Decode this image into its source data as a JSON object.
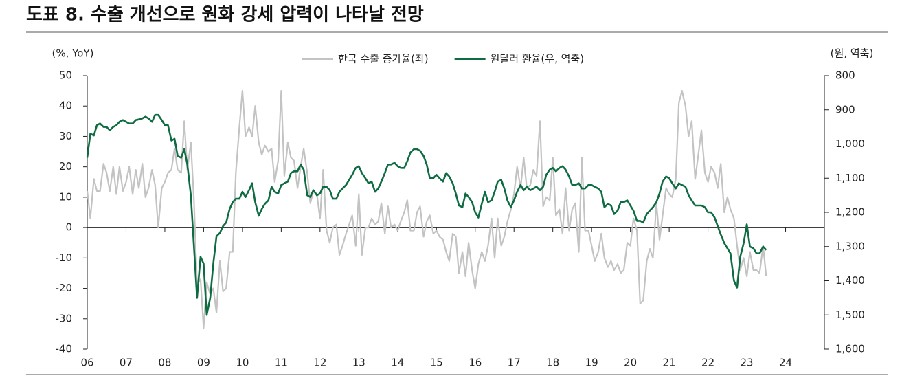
{
  "chart_data": {
    "type": "line",
    "title": "도표 8. 수출 개선으로 원화 강세 압력이 나타날 전망",
    "y_label": "(%, YoY)",
    "y2_label": "(원, 역축)",
    "legend": "top",
    "xlim": [
      2006,
      2025
    ],
    "xticks": [
      {
        "value": 2006,
        "label": "06"
      },
      {
        "value": 2007,
        "label": "07"
      },
      {
        "value": 2008,
        "label": "08"
      },
      {
        "value": 2009,
        "label": "09"
      },
      {
        "value": 2010,
        "label": "10"
      },
      {
        "value": 2011,
        "label": "11"
      },
      {
        "value": 2012,
        "label": "12"
      },
      {
        "value": 2013,
        "label": "13"
      },
      {
        "value": 2014,
        "label": "14"
      },
      {
        "value": 2015,
        "label": "15"
      },
      {
        "value": 2016,
        "label": "16"
      },
      {
        "value": 2017,
        "label": "17"
      },
      {
        "value": 2018,
        "label": "18"
      },
      {
        "value": 2019,
        "label": "19"
      },
      {
        "value": 2020,
        "label": "20"
      },
      {
        "value": 2021,
        "label": "21"
      },
      {
        "value": 2022,
        "label": "22"
      },
      {
        "value": 2023,
        "label": "23"
      },
      {
        "value": 2024,
        "label": "24"
      }
    ],
    "ylim": [
      -40,
      50
    ],
    "yticks": [
      -40,
      -30,
      -20,
      -10,
      0,
      10,
      20,
      30,
      40,
      50
    ],
    "y2lim": [
      1600,
      800
    ],
    "y2ticks": [
      {
        "value": 1600,
        "label": "1,600"
      },
      {
        "value": 1500,
        "label": "1,500"
      },
      {
        "value": 1400,
        "label": "1,400"
      },
      {
        "value": 1300,
        "label": "1,300"
      },
      {
        "value": 1200,
        "label": "1,200"
      },
      {
        "value": 1100,
        "label": "1,100"
      },
      {
        "value": 1000,
        "label": "1,000"
      },
      900,
      800
    ],
    "x": [
      2006.0,
      2006.08,
      2006.17,
      2006.25,
      2006.33,
      2006.42,
      2006.5,
      2006.58,
      2006.67,
      2006.75,
      2006.83,
      2006.92,
      2007.0,
      2007.08,
      2007.17,
      2007.25,
      2007.33,
      2007.42,
      2007.5,
      2007.58,
      2007.67,
      2007.75,
      2007.83,
      2007.92,
      2008.0,
      2008.08,
      2008.17,
      2008.25,
      2008.33,
      2008.42,
      2008.5,
      2008.58,
      2008.67,
      2008.75,
      2008.83,
      2008.92,
      2009.0,
      2009.08,
      2009.17,
      2009.25,
      2009.33,
      2009.42,
      2009.5,
      2009.58,
      2009.67,
      2009.75,
      2009.83,
      2009.92,
      2010.0,
      2010.08,
      2010.17,
      2010.25,
      2010.33,
      2010.42,
      2010.5,
      2010.58,
      2010.67,
      2010.75,
      2010.83,
      2010.92,
      2011.0,
      2011.08,
      2011.17,
      2011.25,
      2011.33,
      2011.42,
      2011.5,
      2011.58,
      2011.67,
      2011.75,
      2011.83,
      2011.92,
      2012.0,
      2012.08,
      2012.17,
      2012.25,
      2012.33,
      2012.42,
      2012.5,
      2012.58,
      2012.67,
      2012.75,
      2012.83,
      2012.92,
      2013.0,
      2013.08,
      2013.17,
      2013.25,
      2013.33,
      2013.42,
      2013.5,
      2013.58,
      2013.67,
      2013.75,
      2013.83,
      2013.92,
      2014.0,
      2014.08,
      2014.17,
      2014.25,
      2014.33,
      2014.42,
      2014.5,
      2014.58,
      2014.67,
      2014.75,
      2014.83,
      2014.92,
      2015.0,
      2015.08,
      2015.17,
      2015.25,
      2015.33,
      2015.42,
      2015.5,
      2015.58,
      2015.67,
      2015.75,
      2015.83,
      2015.92,
      2016.0,
      2016.08,
      2016.17,
      2016.25,
      2016.33,
      2016.42,
      2016.5,
      2016.58,
      2016.67,
      2016.75,
      2016.83,
      2016.92,
      2017.0,
      2017.08,
      2017.17,
      2017.25,
      2017.33,
      2017.42,
      2017.5,
      2017.58,
      2017.67,
      2017.75,
      2017.83,
      2017.92,
      2018.0,
      2018.08,
      2018.17,
      2018.25,
      2018.33,
      2018.42,
      2018.5,
      2018.58,
      2018.67,
      2018.75,
      2018.83,
      2018.92,
      2019.0,
      2019.08,
      2019.17,
      2019.25,
      2019.33,
      2019.42,
      2019.5,
      2019.58,
      2019.67,
      2019.75,
      2019.83,
      2019.92,
      2020.0,
      2020.08,
      2020.17,
      2020.25,
      2020.33,
      2020.42,
      2020.5,
      2020.58,
      2020.67,
      2020.75,
      2020.83,
      2020.92,
      2021.0,
      2021.08,
      2021.17,
      2021.25,
      2021.33,
      2021.42,
      2021.5,
      2021.58,
      2021.67,
      2021.75,
      2021.83,
      2021.92,
      2022.0,
      2022.08,
      2022.17,
      2022.25,
      2022.33,
      2022.42,
      2022.5,
      2022.58,
      2022.67,
      2022.75,
      2022.83,
      2022.92,
      2023.0,
      2023.08,
      2023.17,
      2023.25,
      2023.33,
      2023.42,
      2023.5
    ],
    "series": [
      {
        "name": "한국 수출 증가율(좌)",
        "color": "#c3c3c3",
        "axis": "y",
        "values": [
          12,
          3,
          16,
          12,
          12,
          21,
          18,
          12,
          20,
          11,
          20,
          12,
          15,
          20,
          11,
          19,
          13,
          21,
          10,
          13,
          19,
          14,
          0,
          13,
          15,
          18,
          19,
          26,
          19,
          18,
          35,
          19,
          28,
          9,
          -19,
          -17,
          -33,
          -18,
          -22,
          -20,
          -28,
          -11,
          -21,
          -20,
          -8,
          -8,
          18,
          33,
          45,
          30,
          33,
          30,
          40,
          28,
          24,
          27,
          25,
          26,
          15,
          22,
          45,
          17,
          28,
          23,
          22,
          13,
          20,
          26,
          18,
          8,
          12,
          11,
          3,
          19,
          -1,
          -5,
          0,
          1,
          -9,
          -6,
          -2,
          1,
          4,
          -6,
          11,
          -9,
          0,
          0,
          3,
          1,
          2,
          8,
          -2,
          7,
          0,
          1,
          -1,
          2,
          5,
          9,
          -1,
          -1,
          5,
          7,
          -3,
          2,
          4,
          -2,
          -1,
          -3,
          -4,
          -8,
          -11,
          -2,
          -3,
          -15,
          -8,
          -16,
          -5,
          -14,
          -20,
          -12,
          -8,
          -11,
          -6,
          3,
          -10,
          3,
          -6,
          -3,
          2,
          6,
          11,
          20,
          13,
          23,
          13,
          14,
          19,
          17,
          35,
          7,
          10,
          9,
          23,
          4,
          6,
          -2,
          13,
          -1,
          6,
          8,
          -8,
          23,
          -1,
          -1,
          -6,
          -11,
          -8,
          -2,
          -10,
          -13,
          -11,
          -14,
          -12,
          -15,
          -14,
          -5,
          -6,
          3,
          -1,
          -25,
          -24,
          -11,
          -7,
          -10,
          8,
          -4,
          4,
          13,
          11,
          10,
          16,
          41,
          45,
          40,
          30,
          35,
          16,
          24,
          32,
          18,
          15,
          20,
          18,
          13,
          21,
          5,
          10,
          6,
          3,
          -6,
          -14,
          -10,
          -16,
          -8,
          -14,
          -14,
          -15,
          -6,
          -16
        ]
      },
      {
        "name": "원달러 환율(우, 역축)",
        "color": "#0e6b42",
        "axis": "y2",
        "values": [
          1040,
          970,
          975,
          945,
          940,
          950,
          950,
          960,
          950,
          945,
          935,
          930,
          935,
          940,
          940,
          930,
          928,
          925,
          920,
          925,
          935,
          915,
          915,
          930,
          945,
          945,
          990,
          985,
          1035,
          1040,
          1015,
          1060,
          1150,
          1300,
          1450,
          1330,
          1350,
          1500,
          1450,
          1350,
          1270,
          1260,
          1240,
          1230,
          1190,
          1170,
          1160,
          1160,
          1140,
          1155,
          1135,
          1115,
          1170,
          1210,
          1190,
          1175,
          1165,
          1125,
          1140,
          1145,
          1120,
          1115,
          1110,
          1085,
          1080,
          1080,
          1060,
          1075,
          1150,
          1155,
          1135,
          1150,
          1145,
          1125,
          1125,
          1135,
          1160,
          1160,
          1140,
          1130,
          1120,
          1105,
          1090,
          1070,
          1065,
          1085,
          1100,
          1115,
          1110,
          1140,
          1130,
          1110,
          1085,
          1060,
          1060,
          1055,
          1065,
          1070,
          1070,
          1050,
          1025,
          1015,
          1015,
          1020,
          1035,
          1060,
          1100,
          1100,
          1090,
          1100,
          1110,
          1085,
          1095,
          1115,
          1145,
          1180,
          1185,
          1145,
          1155,
          1170,
          1200,
          1215,
          1175,
          1140,
          1170,
          1165,
          1140,
          1110,
          1105,
          1130,
          1165,
          1185,
          1165,
          1140,
          1120,
          1135,
          1125,
          1135,
          1130,
          1125,
          1135,
          1125,
          1090,
          1075,
          1070,
          1080,
          1070,
          1065,
          1075,
          1095,
          1120,
          1120,
          1115,
          1130,
          1130,
          1120,
          1120,
          1125,
          1130,
          1140,
          1185,
          1175,
          1180,
          1205,
          1195,
          1170,
          1170,
          1165,
          1180,
          1195,
          1225,
          1225,
          1230,
          1205,
          1195,
          1185,
          1170,
          1145,
          1110,
          1095,
          1100,
          1115,
          1130,
          1115,
          1120,
          1125,
          1150,
          1165,
          1180,
          1180,
          1180,
          1185,
          1200,
          1200,
          1215,
          1240,
          1265,
          1290,
          1305,
          1320,
          1400,
          1420,
          1330,
          1290,
          1235,
          1300,
          1305,
          1320,
          1320,
          1300,
          1310
        ]
      }
    ]
  }
}
